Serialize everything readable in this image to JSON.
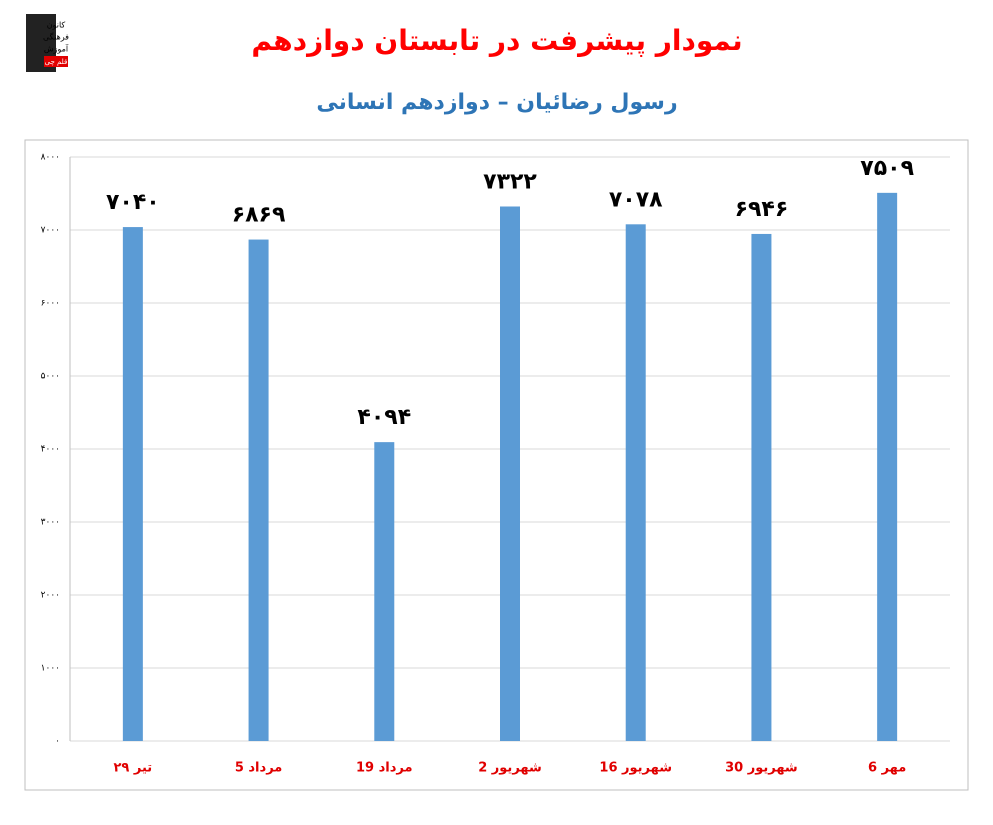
{
  "logo": {
    "lines": [
      "کانون",
      "فرهنگی",
      "آموزش",
      "قلم چی"
    ]
  },
  "chart_data": {
    "type": "bar",
    "title": "نمودار پیشرفت در تابستان دوازدهم",
    "subtitle": "رسول رضائیان – دوازدهم انسانی",
    "categories": [
      "۲۹ تیر",
      "5 مرداد",
      "19 مرداد",
      "2 شهریور",
      "16 شهریور",
      "30 شهریور",
      "6 مهر"
    ],
    "values": [
      7040,
      6869,
      4094,
      7322,
      7078,
      6946,
      7509
    ],
    "value_labels": [
      "۷۰۴۰",
      "۶۸۶۹",
      "۴۰۹۴",
      "۷۳۲۲",
      "۷۰۷۸",
      "۶۹۴۶",
      "۷۵۰۹"
    ],
    "color": "#5b9bd5",
    "ylim": [
      0,
      8000
    ],
    "yticks": [
      {
        "value": 0,
        "label": "۰"
      },
      {
        "value": 1000,
        "label": "۱۰۰۰"
      },
      {
        "value": 2000,
        "label": "۲۰۰۰"
      },
      {
        "value": 3000,
        "label": "۳۰۰۰"
      },
      {
        "value": 4000,
        "label": "۴۰۰۰"
      },
      {
        "value": 5000,
        "label": "۵۰۰۰"
      },
      {
        "value": 6000,
        "label": "۶۰۰۰"
      },
      {
        "value": 7000,
        "label": "۷۰۰۰"
      },
      {
        "value": 8000,
        "label": "۸۰۰۰"
      }
    ],
    "grid": true
  }
}
